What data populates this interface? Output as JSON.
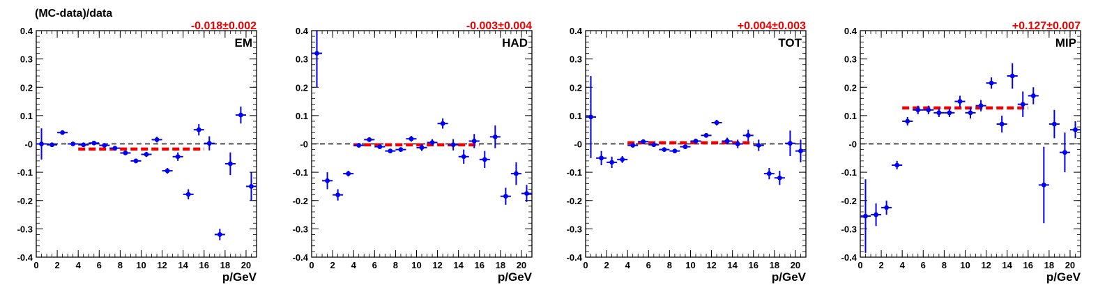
{
  "figure": {
    "ylabel": "(MC-data)/data",
    "xlabel": "p/GeV"
  },
  "colors": {
    "points": "#0000ee",
    "fit": "#ee0000",
    "zero_line": "#000000",
    "axis": "#000000"
  },
  "chart_data": [
    {
      "type": "scatter",
      "panel_label": "EM",
      "fit_text": "-0.018±0.002",
      "fit": {
        "value": -0.018,
        "x_range": [
          4,
          16
        ]
      },
      "xlim": [
        0,
        21
      ],
      "ylim": [
        -0.4,
        0.4
      ],
      "xticks": [
        0,
        2,
        4,
        6,
        8,
        10,
        12,
        14,
        16,
        18,
        20
      ],
      "yticks": [
        -0.4,
        -0.3,
        -0.2,
        -0.1,
        0,
        0.1,
        0.2,
        0.3,
        0.4
      ],
      "ytick_labels": [
        "-0.4",
        "-0.3",
        "-0.2",
        "-0.1",
        "-0",
        "0.1",
        "0.2",
        "0.3",
        "0.4"
      ],
      "grid": false,
      "series": [
        {
          "x": [
            0.5,
            1.5,
            2.5,
            3.5,
            4.5,
            5.5,
            6.5,
            7.5,
            8.5,
            9.5,
            10.5,
            11.5,
            12.5,
            13.5,
            14.5,
            15.5,
            16.5,
            17.5,
            18.5,
            19.5,
            20.5
          ],
          "y": [
            0.0,
            -0.003,
            0.04,
            0.0,
            -0.003,
            0.003,
            -0.005,
            -0.015,
            -0.032,
            -0.06,
            -0.037,
            0.015,
            -0.095,
            -0.045,
            -0.178,
            0.05,
            0.002,
            -0.32,
            -0.07,
            0.102,
            -0.15
          ],
          "yerr": [
            0.055,
            0.008,
            0.006,
            0.004,
            0.004,
            0.004,
            0.005,
            0.006,
            0.007,
            0.008,
            0.009,
            0.01,
            0.01,
            0.015,
            0.018,
            0.02,
            0.025,
            0.02,
            0.04,
            0.03,
            0.05
          ]
        }
      ]
    },
    {
      "type": "scatter",
      "panel_label": "HAD",
      "fit_text": "-0.003±0.004",
      "fit": {
        "value": -0.003,
        "x_range": [
          4,
          16
        ]
      },
      "xlim": [
        0,
        21
      ],
      "ylim": [
        -0.4,
        0.4
      ],
      "xticks": [
        0,
        2,
        4,
        6,
        8,
        10,
        12,
        14,
        16,
        18,
        20
      ],
      "yticks": [
        -0.4,
        -0.3,
        -0.2,
        -0.1,
        0,
        0.1,
        0.2,
        0.3,
        0.4
      ],
      "ytick_labels": [
        "-0.4",
        "-0.3",
        "-0.2",
        "-0.1",
        "-0",
        "0.1",
        "0.2",
        "0.3",
        "0.4"
      ],
      "grid": false,
      "series": [
        {
          "x": [
            0.5,
            1.5,
            2.5,
            3.5,
            4.5,
            5.5,
            6.5,
            7.5,
            8.5,
            9.5,
            10.5,
            11.5,
            12.5,
            13.5,
            14.5,
            15.5,
            16.5,
            17.5,
            18.5,
            19.5,
            20.5
          ],
          "y": [
            0.32,
            -0.13,
            -0.18,
            -0.105,
            -0.005,
            0.015,
            -0.01,
            -0.025,
            -0.02,
            0.018,
            -0.013,
            0.005,
            0.072,
            -0.003,
            -0.045,
            0.01,
            -0.055,
            0.025,
            -0.185,
            -0.105,
            -0.175
          ],
          "yerr": [
            0.12,
            0.03,
            0.02,
            0.01,
            0.008,
            0.008,
            0.008,
            0.008,
            0.008,
            0.01,
            0.012,
            0.012,
            0.018,
            0.02,
            0.025,
            0.025,
            0.03,
            0.04,
            0.03,
            0.04,
            0.03
          ]
        }
      ]
    },
    {
      "type": "scatter",
      "panel_label": "TOT",
      "fit_text": "+0.004±0.003",
      "fit": {
        "value": 0.004,
        "x_range": [
          4,
          16
        ]
      },
      "xlim": [
        0,
        21
      ],
      "ylim": [
        -0.4,
        0.4
      ],
      "xticks": [
        0,
        2,
        4,
        6,
        8,
        10,
        12,
        14,
        16,
        18,
        20
      ],
      "yticks": [
        -0.4,
        -0.3,
        -0.2,
        -0.1,
        0,
        0.1,
        0.2,
        0.3,
        0.4
      ],
      "ytick_labels": [
        "-0.4",
        "-0.3",
        "-0.2",
        "-0.1",
        "-0",
        "0.1",
        "0.2",
        "0.3",
        "0.4"
      ],
      "grid": false,
      "series": [
        {
          "x": [
            0.5,
            1.5,
            2.5,
            3.5,
            4.5,
            5.5,
            6.5,
            7.5,
            8.5,
            9.5,
            10.5,
            11.5,
            12.5,
            13.5,
            14.5,
            15.5,
            16.5,
            17.5,
            18.5,
            19.5,
            20.5
          ],
          "y": [
            0.095,
            -0.05,
            -0.065,
            -0.055,
            -0.005,
            0.008,
            -0.003,
            -0.02,
            -0.025,
            -0.01,
            0.01,
            0.03,
            0.075,
            0.01,
            0.0,
            0.03,
            -0.005,
            -0.105,
            -0.12,
            0.002,
            -0.025
          ],
          "yerr": [
            0.145,
            0.025,
            0.02,
            0.012,
            0.008,
            0.006,
            0.006,
            0.006,
            0.006,
            0.008,
            0.008,
            0.008,
            0.01,
            0.012,
            0.015,
            0.02,
            0.02,
            0.02,
            0.025,
            0.045,
            0.04
          ]
        }
      ]
    },
    {
      "type": "scatter",
      "panel_label": "MIP",
      "fit_text": "+0.127±0.007",
      "fit": {
        "value": 0.127,
        "x_range": [
          4,
          16
        ]
      },
      "xlim": [
        0,
        21
      ],
      "ylim": [
        -0.4,
        0.4
      ],
      "xticks": [
        0,
        2,
        4,
        6,
        8,
        10,
        12,
        14,
        16,
        18,
        20
      ],
      "yticks": [
        -0.4,
        -0.3,
        -0.2,
        -0.1,
        0,
        0.1,
        0.2,
        0.3,
        0.4
      ],
      "ytick_labels": [
        "-0.4",
        "-0.3",
        "-0.2",
        "-0.1",
        "-0",
        "0.1",
        "0.2",
        "0.3",
        "0.4"
      ],
      "grid": false,
      "series": [
        {
          "x": [
            0.5,
            1.5,
            2.5,
            3.5,
            4.5,
            5.5,
            6.5,
            7.5,
            8.5,
            9.5,
            10.5,
            11.5,
            12.5,
            13.5,
            14.5,
            15.5,
            16.5,
            17.5,
            18.5,
            19.5,
            20.5
          ],
          "y": [
            -0.255,
            -0.25,
            -0.225,
            -0.075,
            0.08,
            0.12,
            0.12,
            0.11,
            0.11,
            0.15,
            0.11,
            0.135,
            0.215,
            0.07,
            0.24,
            0.14,
            0.17,
            -0.145,
            0.07,
            -0.03,
            0.05
          ],
          "yerr": [
            0.13,
            0.04,
            0.025,
            0.015,
            0.015,
            0.015,
            0.015,
            0.015,
            0.015,
            0.02,
            0.02,
            0.02,
            0.02,
            0.03,
            0.045,
            0.045,
            0.03,
            0.135,
            0.05,
            0.07,
            0.03
          ]
        }
      ]
    }
  ]
}
